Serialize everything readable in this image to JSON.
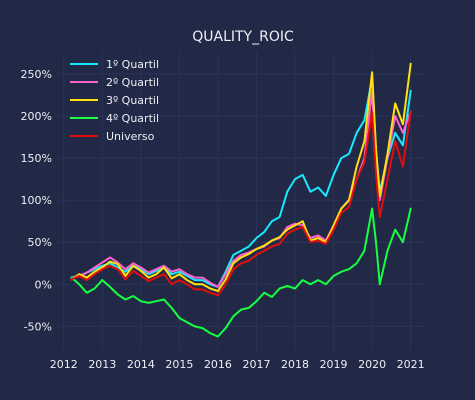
{
  "chart_data": {
    "type": "line",
    "title": "QUALITY_ROIC",
    "xlabel": "",
    "ylabel": "",
    "xlim": [
      2011.85,
      2021.45
    ],
    "ylim": [
      -0.78,
      2.76
    ],
    "grid": true,
    "legend_position": "top-left",
    "x_ticks": [
      2012,
      2013,
      2014,
      2015,
      2016,
      2017,
      2018,
      2019,
      2020,
      2021
    ],
    "x_tick_labels": [
      "2012",
      "2013",
      "2014",
      "2015",
      "2016",
      "2017",
      "2018",
      "2019",
      "2020",
      "2021"
    ],
    "y_ticks": [
      -0.5,
      0,
      0.5,
      1.0,
      1.5,
      2.0,
      2.5
    ],
    "y_tick_labels": [
      "-50%",
      "0%",
      "50%",
      "100%",
      "150%",
      "200%",
      "250%"
    ],
    "x": [
      2012.2,
      2012.4,
      2012.6,
      2012.8,
      2013.0,
      2013.2,
      2013.4,
      2013.6,
      2013.8,
      2014.0,
      2014.2,
      2014.4,
      2014.6,
      2014.8,
      2015.0,
      2015.2,
      2015.4,
      2015.6,
      2015.8,
      2016.0,
      2016.2,
      2016.4,
      2016.6,
      2016.8,
      2017.0,
      2017.2,
      2017.4,
      2017.6,
      2017.8,
      2018.0,
      2018.2,
      2018.4,
      2018.6,
      2018.8,
      2019.0,
      2019.2,
      2019.4,
      2019.6,
      2019.8,
      2020.0,
      2020.1,
      2020.2,
      2020.4,
      2020.6,
      2020.8,
      2021.0
    ],
    "series": [
      {
        "name": "1º Quartil",
        "color": "#18E9FF",
        "values": [
          0.08,
          0.1,
          0.14,
          0.18,
          0.22,
          0.25,
          0.2,
          0.15,
          0.22,
          0.18,
          0.12,
          0.16,
          0.2,
          0.12,
          0.15,
          0.1,
          0.05,
          0.05,
          0.0,
          -0.03,
          0.15,
          0.35,
          0.4,
          0.45,
          0.55,
          0.62,
          0.75,
          0.8,
          1.1,
          1.25,
          1.3,
          1.1,
          1.15,
          1.05,
          1.3,
          1.5,
          1.55,
          1.8,
          1.95,
          2.45,
          1.6,
          1.1,
          1.5,
          1.8,
          1.65,
          2.3
        ]
      },
      {
        "name": "2º Quartil",
        "color": "#FF62CD",
        "values": [
          0.06,
          0.1,
          0.14,
          0.2,
          0.26,
          0.32,
          0.26,
          0.18,
          0.25,
          0.2,
          0.14,
          0.18,
          0.22,
          0.15,
          0.18,
          0.12,
          0.08,
          0.08,
          0.02,
          -0.03,
          0.12,
          0.28,
          0.35,
          0.38,
          0.42,
          0.45,
          0.52,
          0.55,
          0.68,
          0.72,
          0.7,
          0.55,
          0.58,
          0.52,
          0.7,
          0.9,
          1.0,
          1.25,
          1.5,
          2.3,
          1.5,
          1.0,
          1.5,
          2.0,
          1.8,
          2.05
        ]
      },
      {
        "name": "3º Quartil",
        "color": "#FFE010",
        "values": [
          0.06,
          0.12,
          0.08,
          0.15,
          0.2,
          0.27,
          0.24,
          0.1,
          0.22,
          0.16,
          0.08,
          0.12,
          0.2,
          0.07,
          0.12,
          0.05,
          0.0,
          0.0,
          -0.05,
          -0.08,
          0.06,
          0.25,
          0.32,
          0.36,
          0.42,
          0.46,
          0.52,
          0.56,
          0.65,
          0.7,
          0.75,
          0.52,
          0.55,
          0.5,
          0.7,
          0.9,
          1.0,
          1.4,
          1.7,
          2.52,
          1.6,
          1.05,
          1.55,
          2.15,
          1.9,
          2.62
        ]
      },
      {
        "name": "4º Quartil",
        "color": "#18FF42",
        "values": [
          0.08,
          0.0,
          -0.1,
          -0.05,
          0.05,
          -0.03,
          -0.12,
          -0.18,
          -0.14,
          -0.2,
          -0.22,
          -0.2,
          -0.18,
          -0.28,
          -0.4,
          -0.45,
          -0.5,
          -0.52,
          -0.58,
          -0.62,
          -0.52,
          -0.38,
          -0.3,
          -0.28,
          -0.2,
          -0.1,
          -0.15,
          -0.05,
          -0.02,
          -0.05,
          0.05,
          0.0,
          0.05,
          0.0,
          0.1,
          0.15,
          0.18,
          0.25,
          0.4,
          0.9,
          0.5,
          0.0,
          0.4,
          0.65,
          0.5,
          0.9
        ]
      },
      {
        "name": "Universo",
        "color": "#E20E0E",
        "values": [
          0.06,
          0.1,
          0.05,
          0.12,
          0.18,
          0.22,
          0.18,
          0.06,
          0.16,
          0.1,
          0.04,
          0.08,
          0.12,
          0.0,
          0.05,
          0.0,
          -0.06,
          -0.06,
          -0.1,
          -0.13,
          0.0,
          0.18,
          0.25,
          0.28,
          0.35,
          0.4,
          0.45,
          0.48,
          0.6,
          0.65,
          0.68,
          0.5,
          0.52,
          0.48,
          0.65,
          0.85,
          0.92,
          1.25,
          1.45,
          2.05,
          1.3,
          0.8,
          1.25,
          1.7,
          1.4,
          2.05
        ]
      }
    ]
  }
}
